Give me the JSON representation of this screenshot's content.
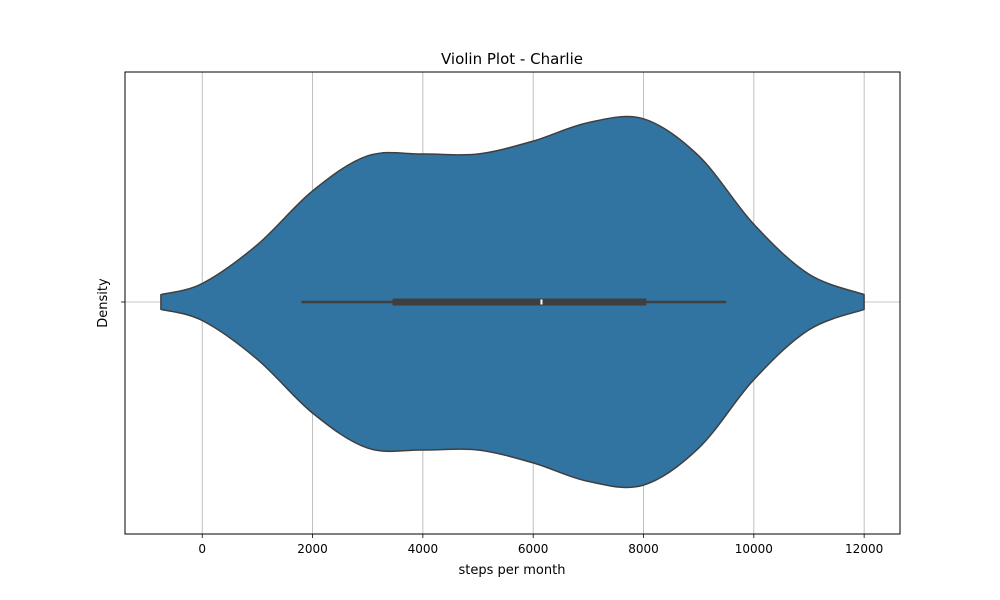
{
  "chart_data": {
    "type": "violin",
    "orientation": "horizontal",
    "title": "Violin Plot - Charlie",
    "xlabel": "steps per month",
    "ylabel": "Density",
    "xlim": [
      -1400,
      12650
    ],
    "xticks": [
      0,
      2000,
      4000,
      6000,
      8000,
      10000,
      12000
    ],
    "xtick_labels": [
      "0",
      "2000",
      "4000",
      "6000",
      "8000",
      "10000",
      "12000"
    ],
    "yticks": [
      0
    ],
    "ytick_labels": [
      ""
    ],
    "grid": true,
    "color": "#3274a1",
    "edge_color": "#3f3f3f",
    "box_color": "#3f3f3f",
    "median_color": "#ffffff",
    "violin": {
      "range": [
        -750,
        12000
      ],
      "density_profile": [
        [
          -750,
          0.04
        ],
        [
          0,
          0.1
        ],
        [
          1000,
          0.31
        ],
        [
          2000,
          0.6
        ],
        [
          3000,
          0.79
        ],
        [
          4000,
          0.8
        ],
        [
          5000,
          0.8
        ],
        [
          6000,
          0.87
        ],
        [
          7000,
          0.97
        ],
        [
          8000,
          0.99
        ],
        [
          9000,
          0.79
        ],
        [
          10000,
          0.42
        ],
        [
          11000,
          0.15
        ],
        [
          12000,
          0.04
        ]
      ]
    },
    "box": {
      "whisker_low": 1800,
      "q1": 3450,
      "median": 6150,
      "q3": 8050,
      "whisker_high": 9500
    }
  }
}
